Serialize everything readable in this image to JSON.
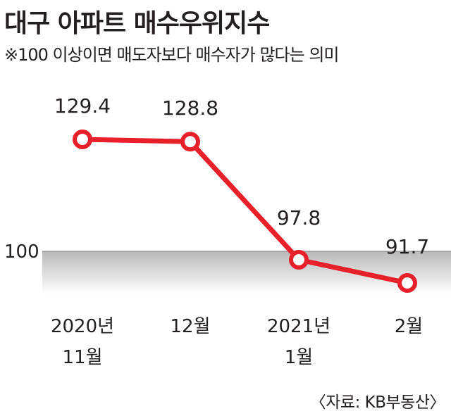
{
  "title": "대구 아파트 매수우위지수",
  "subtitle": "※100 이상이면 매도자보다 매수자가 많다는 의미",
  "source": "〈자료: KB부동산〉",
  "colors": {
    "line": "#e8202a",
    "band": "#c8c8c8",
    "text": "#231f20"
  },
  "chart_data": {
    "type": "line",
    "title": "대구 아파트 매수우위지수",
    "categories": [
      [
        "2020년",
        "11월"
      ],
      [
        "12월"
      ],
      [
        "2021년",
        "1월"
      ],
      [
        "2월"
      ]
    ],
    "series": [
      {
        "values": [
          129.4,
          128.8,
          97.8,
          91.7
        ]
      }
    ],
    "data_labels": [
      "129.4",
      "128.8",
      "97.8",
      "91.7"
    ],
    "reference_line": {
      "value": 100,
      "label": "100"
    },
    "ylim": [
      85,
      140
    ],
    "grid": false,
    "legend": "none"
  }
}
